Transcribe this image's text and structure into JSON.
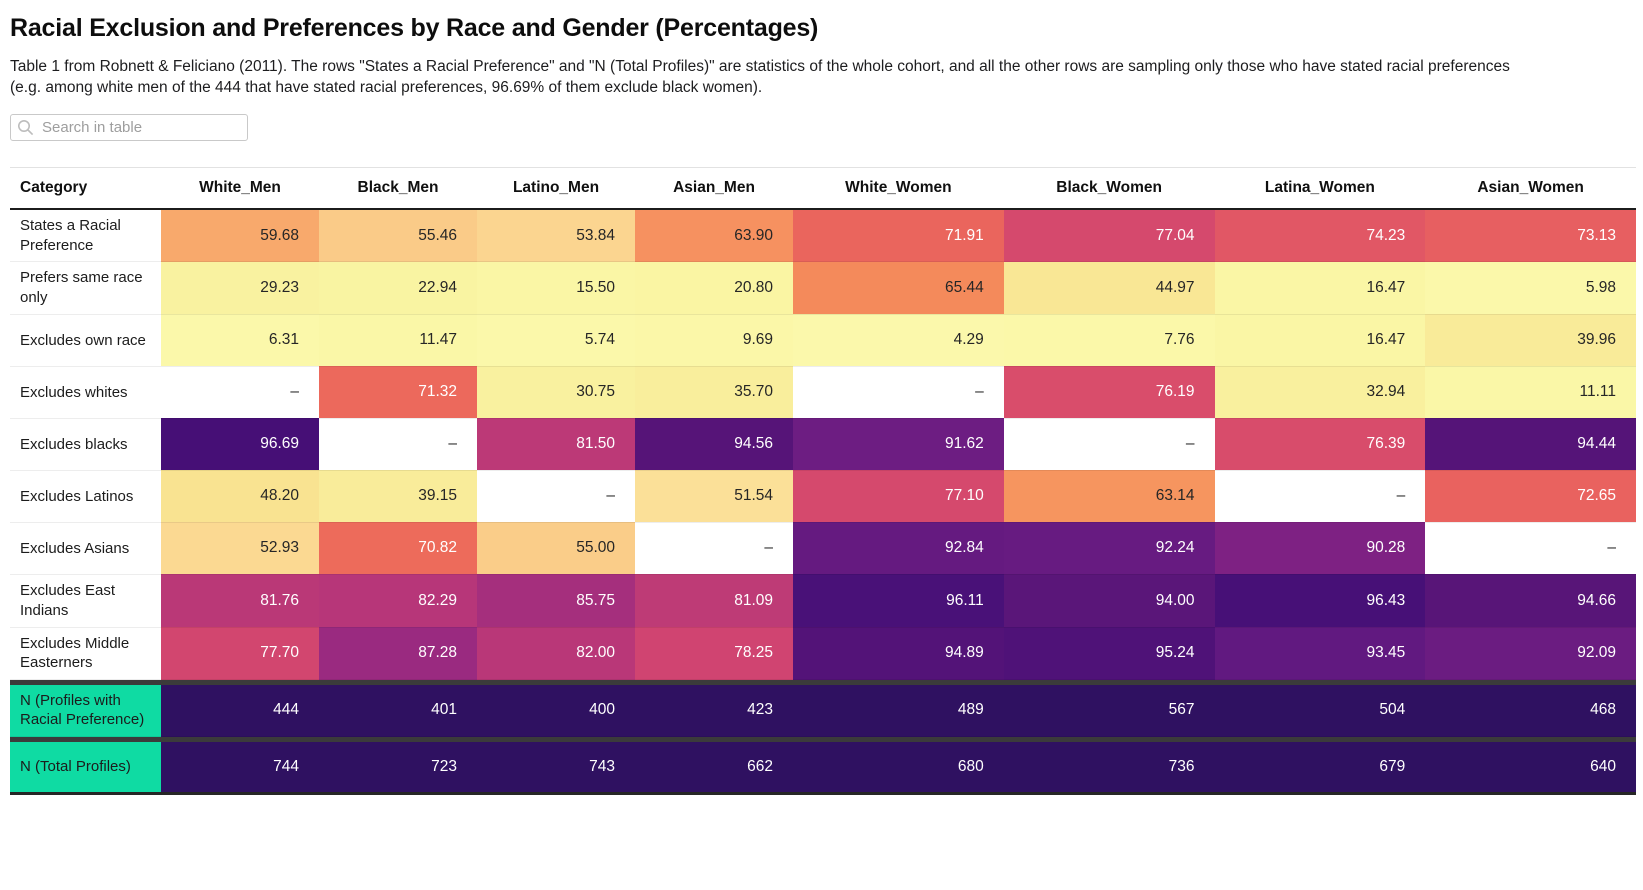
{
  "page": {
    "title": "Racial Exclusion and Preferences by Race and Gender (Percentages)",
    "subtitle": "Table 1 from Robnett & Feliciano (2011). The rows \"States a Racial Preference\" and \"N (Total Profiles)\" are statistics of the whole cohort, and all the other rows are sampling only those who have stated racial preferences (e.g. among white men of the 444 that have stated racial preferences, 96.69% of them exclude black women).",
    "search_placeholder": "Search in table"
  },
  "colors": {
    "na_cell_bg": "#FFFFFF",
    "n_row_cell_bg": "#2F1161",
    "n_row_label_bg": "#0FDBA3",
    "percent_row_label_bg": "#FFFFFF",
    "separator_bar": "#3B3B3B",
    "dark_text": "#262626",
    "light_text": "#FFFFFF",
    "header_border": "#1C1C1C"
  },
  "chart_data": {
    "type": "heatmap",
    "title": "Racial Exclusion and Preferences by Race and Gender (Percentages)",
    "columns": [
      "Category",
      "White_Men",
      "Black_Men",
      "Latino_Men",
      "Asian_Men",
      "White_Women",
      "Black_Women",
      "Latina_Women",
      "Asian_Women"
    ],
    "na_display": "–",
    "colormap_note": "pale yellow (low) to orange, red, magenta, dark purple (high); N rows clamp to dark indigo",
    "rows": [
      {
        "label": "States a Racial Preference",
        "values": [
          59.68,
          55.46,
          53.84,
          63.9,
          71.91,
          77.04,
          74.23,
          73.13
        ],
        "display": [
          "59.68",
          "55.46",
          "53.84",
          "63.90",
          "71.91",
          "77.04",
          "74.23",
          "73.13"
        ],
        "cell_colors": [
          "#F8A96C",
          "#FACB88",
          "#FBD590",
          "#F69160",
          "#EA655D",
          "#D5496D",
          "#E15765",
          "#E75F61"
        ],
        "label_bg": "#FFFFFF",
        "is_n_row": false,
        "separator_before": false
      },
      {
        "label": "Prefers same race only",
        "values": [
          29.23,
          22.94,
          15.5,
          20.8,
          65.44,
          44.97,
          16.47,
          5.98
        ],
        "display": [
          "29.23",
          "22.94",
          "15.50",
          "20.80",
          "65.44",
          "44.97",
          "16.47",
          "5.98"
        ],
        "cell_colors": [
          "#F9F2A0",
          "#F9F4A2",
          "#FAF6A5",
          "#FAF5A3",
          "#F48A5B",
          "#F9E795",
          "#FAF6A5",
          "#FBF8AA"
        ],
        "label_bg": "#FFFFFF",
        "is_n_row": false,
        "separator_before": false
      },
      {
        "label": "Excludes own race",
        "values": [
          6.31,
          11.47,
          5.74,
          9.69,
          4.29,
          7.76,
          16.47,
          39.96
        ],
        "display": [
          "6.31",
          "11.47",
          "5.74",
          "9.69",
          "4.29",
          "7.76",
          "16.47",
          "39.96"
        ],
        "cell_colors": [
          "#FBF8AA",
          "#FAF7A7",
          "#FBF8AA",
          "#FBF7A8",
          "#FBF8AB",
          "#FBF8A9",
          "#FAF6A5",
          "#F9EB99"
        ],
        "label_bg": "#FFFFFF",
        "is_n_row": false,
        "separator_before": false
      },
      {
        "label": "Excludes whites",
        "values": [
          null,
          71.32,
          30.75,
          35.7,
          null,
          76.19,
          32.94,
          11.11
        ],
        "display": [
          "–",
          "71.32",
          "30.75",
          "35.70",
          "–",
          "76.19",
          "32.94",
          "11.11"
        ],
        "cell_colors": [
          "#FFFFFF",
          "#EC695C",
          "#F9F19F",
          "#F9EE9C",
          "#FFFFFF",
          "#D94D6B",
          "#F9F09E",
          "#FAF7A7"
        ],
        "label_bg": "#FFFFFF",
        "is_n_row": false,
        "separator_before": false
      },
      {
        "label": "Excludes blacks",
        "values": [
          96.69,
          null,
          81.5,
          94.56,
          91.62,
          null,
          76.39,
          94.44
        ],
        "display": [
          "96.69",
          "–",
          "81.50",
          "94.56",
          "91.62",
          "–",
          "76.39",
          "94.44"
        ],
        "cell_colors": [
          "#460F76",
          "#FFFFFF",
          "#BC3977",
          "#561478",
          "#6D1D82",
          "#FFFFFF",
          "#D84C6B",
          "#551478"
        ],
        "label_bg": "#FFFFFF",
        "is_n_row": false,
        "separator_before": false
      },
      {
        "label": "Excludes Latinos",
        "values": [
          48.2,
          39.15,
          null,
          51.54,
          77.1,
          63.14,
          null,
          72.65
        ],
        "display": [
          "48.20",
          "39.15",
          "–",
          "51.54",
          "77.10",
          "63.14",
          "–",
          "72.65"
        ],
        "cell_colors": [
          "#F9E391",
          "#F9EC9A",
          "#FFFFFF",
          "#FBE098",
          "#D5496D",
          "#F6955F",
          "#FFFFFF",
          "#E9625F"
        ],
        "label_bg": "#FFFFFF",
        "is_n_row": false,
        "separator_before": false
      },
      {
        "label": "Excludes Asians",
        "values": [
          52.93,
          70.82,
          55.0,
          null,
          92.84,
          92.24,
          90.28,
          null
        ],
        "display": [
          "52.93",
          "70.82",
          "55.00",
          "–",
          "92.84",
          "92.24",
          "90.28",
          "–"
        ],
        "cell_colors": [
          "#FBD992",
          "#ED6B5B",
          "#FACD89",
          "#FFFFFF",
          "#651A80",
          "#671B81",
          "#7E2183",
          "#FFFFFF"
        ],
        "label_bg": "#FFFFFF",
        "is_n_row": false,
        "separator_before": false
      },
      {
        "label": "Excludes East Indians",
        "values": [
          81.76,
          82.29,
          85.75,
          81.09,
          96.11,
          94.0,
          96.43,
          94.66
        ],
        "display": [
          "81.76",
          "82.29",
          "85.75",
          "81.09",
          "96.11",
          "94.00",
          "96.43",
          "94.66"
        ],
        "cell_colors": [
          "#BA3877",
          "#B73679",
          "#A52F7D",
          "#BE3B76",
          "#491178",
          "#5A1679",
          "#471077",
          "#581578"
        ],
        "label_bg": "#FFFFFF",
        "is_n_row": false,
        "separator_before": false
      },
      {
        "label": "Excludes Middle Easterners",
        "values": [
          77.7,
          87.28,
          82.0,
          78.25,
          94.89,
          95.24,
          93.45,
          92.09
        ],
        "display": [
          "77.70",
          "87.28",
          "82.00",
          "78.25",
          "94.89",
          "95.24",
          "93.45",
          "92.09"
        ],
        "cell_colors": [
          "#D2466F",
          "#9A2A80",
          "#B93778",
          "#D04471",
          "#531378",
          "#4F1278",
          "#611980",
          "#6B1C81"
        ],
        "label_bg": "#FFFFFF",
        "is_n_row": false,
        "separator_before": false
      },
      {
        "label": "N (Profiles with Racial Preference)",
        "values": [
          444,
          401,
          400,
          423,
          489,
          567,
          504,
          468
        ],
        "display": [
          "444",
          "401",
          "400",
          "423",
          "489",
          "567",
          "504",
          "468"
        ],
        "cell_colors": [
          "#2F1161",
          "#2F1161",
          "#2F1161",
          "#2F1161",
          "#2F1161",
          "#2F1161",
          "#2F1161",
          "#2F1161"
        ],
        "label_bg": "#0FDBA3",
        "is_n_row": true,
        "separator_before": true
      },
      {
        "label": "N (Total Profiles)",
        "values": [
          744,
          723,
          743,
          662,
          680,
          736,
          679,
          640
        ],
        "display": [
          "744",
          "723",
          "743",
          "662",
          "680",
          "736",
          "679",
          "640"
        ],
        "cell_colors": [
          "#2F1161",
          "#2F1161",
          "#2F1161",
          "#2F1161",
          "#2F1161",
          "#2F1161",
          "#2F1161",
          "#2F1161"
        ],
        "label_bg": "#0FDBA3",
        "is_n_row": true,
        "separator_before": true
      }
    ]
  }
}
